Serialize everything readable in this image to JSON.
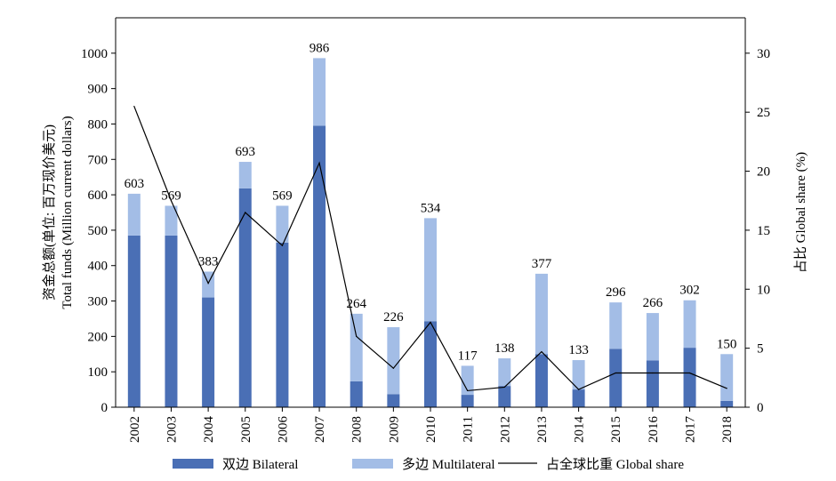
{
  "chart_data": {
    "type": "bar",
    "categories": [
      "2002",
      "2003",
      "2004",
      "2005",
      "2006",
      "2007",
      "2008",
      "2009",
      "2010",
      "2011",
      "2012",
      "2013",
      "2014",
      "2015",
      "2016",
      "2017",
      "2018"
    ],
    "series": [
      {
        "name": "双边 Bilateral",
        "stacked": true,
        "color": "#4a6fb5",
        "values": [
          485,
          485,
          310,
          618,
          465,
          795,
          73,
          37,
          243,
          35,
          60,
          150,
          50,
          165,
          132,
          168,
          18
        ]
      },
      {
        "name": "多边 Multilateral",
        "stacked": true,
        "color": "#a3bde6",
        "values": [
          118,
          84,
          73,
          75,
          104,
          191,
          191,
          189,
          291,
          82,
          78,
          227,
          83,
          131,
          134,
          134,
          132
        ]
      },
      {
        "name": "占全球比重 Global share",
        "type": "line",
        "axis": "right",
        "color": "#000000",
        "values": [
          25.5,
          17.5,
          10.5,
          16.5,
          13.7,
          20.7,
          6.0,
          3.3,
          7.2,
          1.4,
          1.7,
          4.7,
          1.5,
          2.9,
          2.9,
          2.9,
          1.6
        ]
      }
    ],
    "totals": [
      603,
      569,
      383,
      693,
      569,
      986,
      264,
      226,
      534,
      117,
      138,
      377,
      133,
      296,
      266,
      302,
      150
    ],
    "y_left": {
      "label_cn": "资金总额(单位: 百万现价美元)",
      "label_en": "Total funds (Million current dollars)",
      "ylim": [
        0,
        1100
      ],
      "ticks": [
        0,
        100,
        200,
        300,
        400,
        500,
        600,
        700,
        800,
        900,
        1000
      ]
    },
    "y_right": {
      "label": "占比 Global share (%)",
      "ylim": [
        0,
        33
      ],
      "ticks": [
        0,
        5,
        10,
        15,
        20,
        25,
        30
      ]
    },
    "legend": {
      "position": "bottom",
      "items": [
        "双边 Bilateral",
        "多边 Multilateral",
        "占全球比重 Global share"
      ]
    }
  }
}
